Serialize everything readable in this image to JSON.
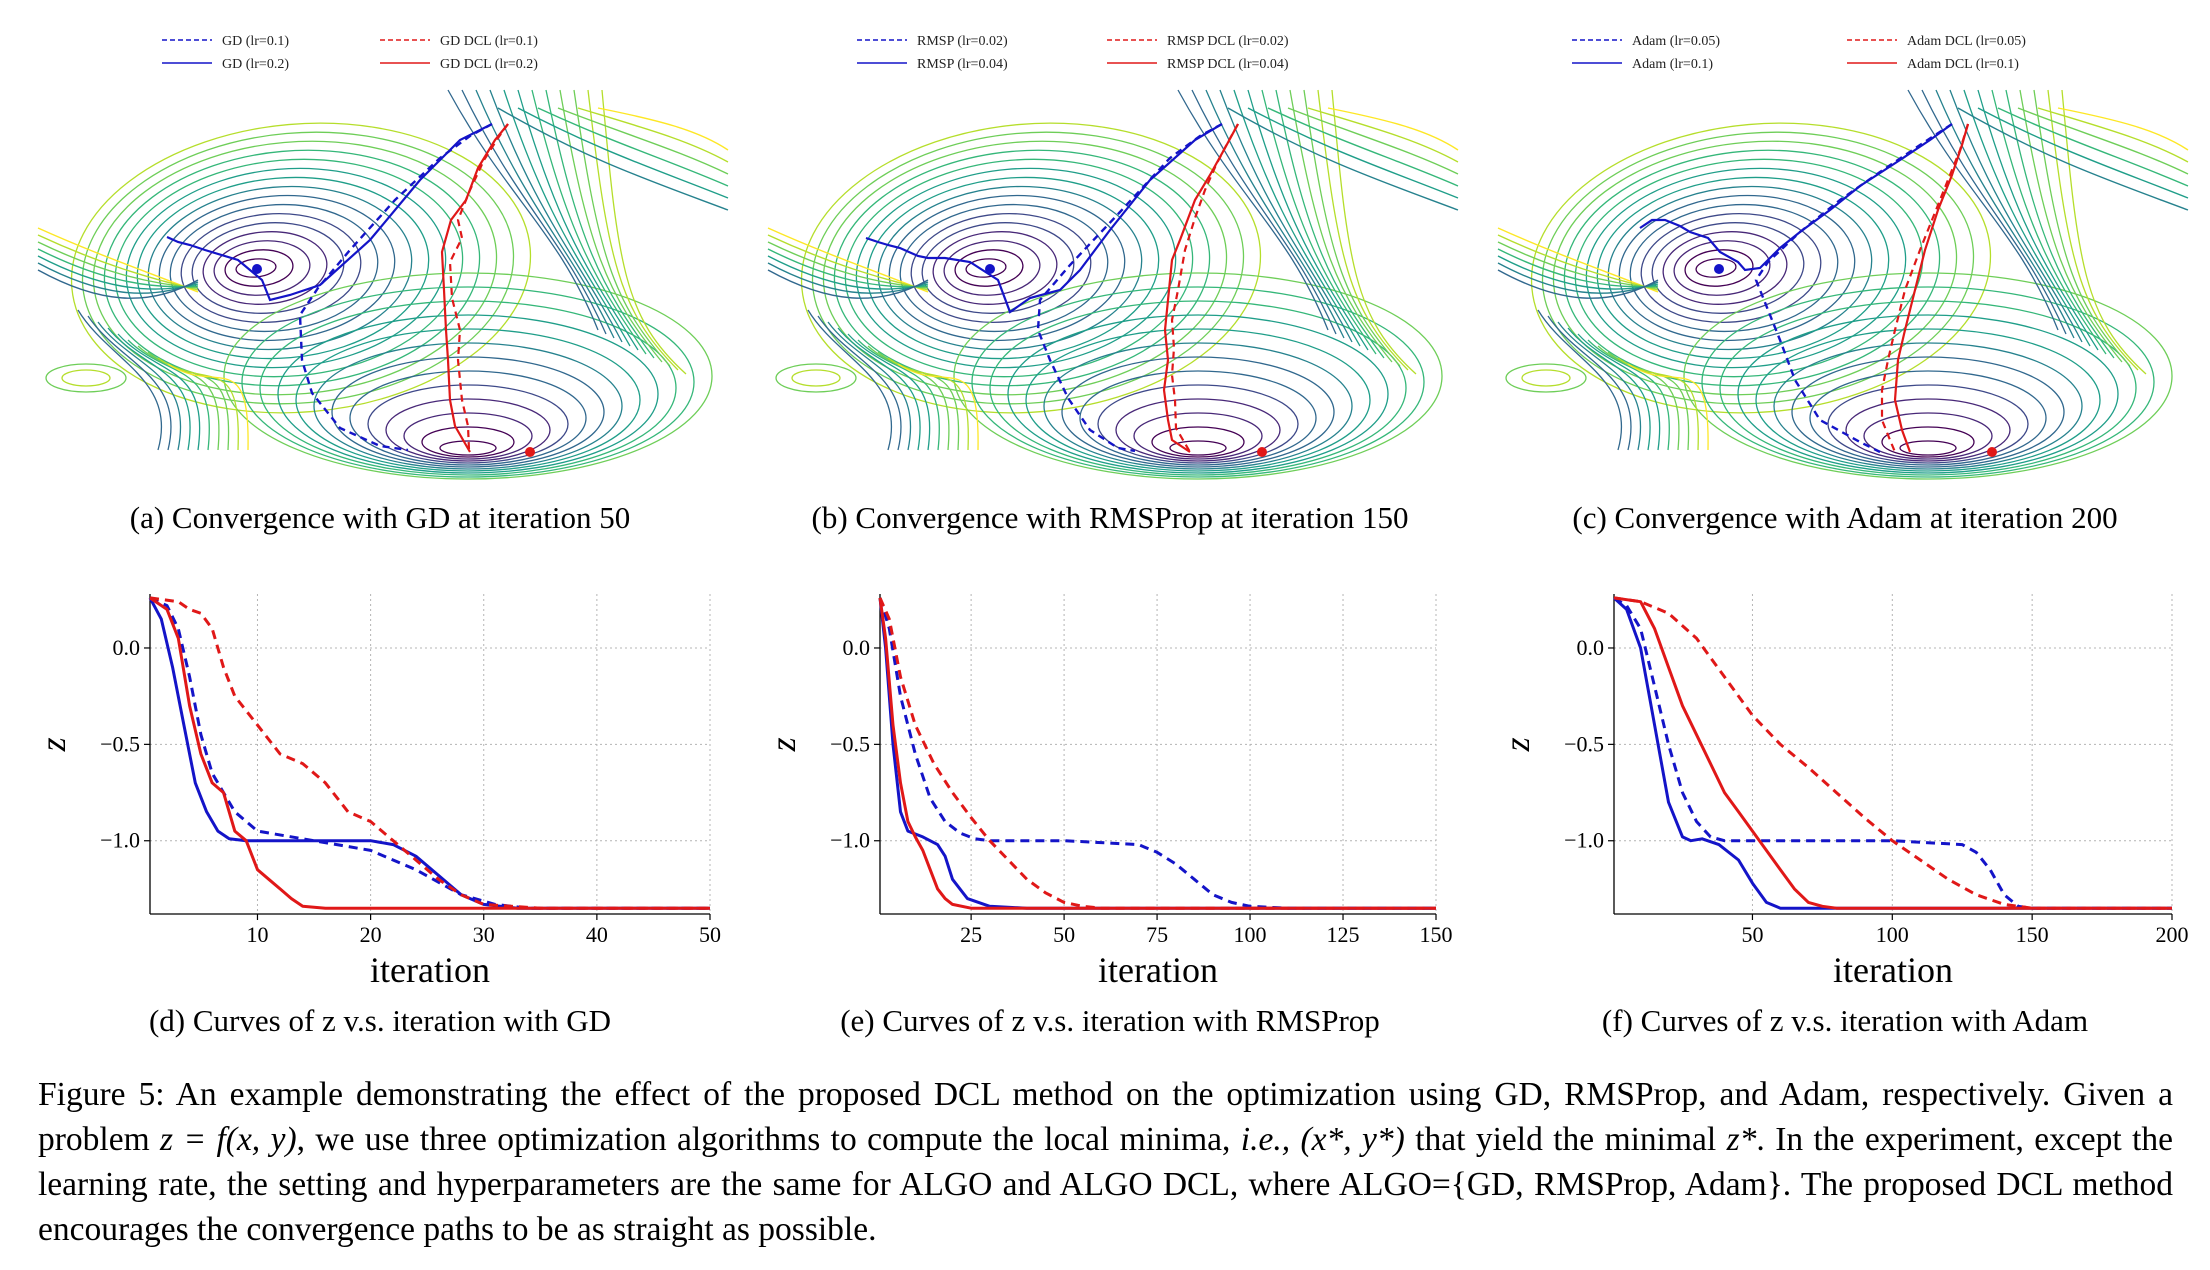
{
  "contour_panels": [
    {
      "legend": [
        "GD (lr=0.1)",
        "GD DCL (lr=0.1)",
        "GD (lr=0.2)",
        "GD DCL (lr=0.2)"
      ],
      "caption": "(a) Convergence with GD at iteration 50"
    },
    {
      "legend": [
        "RMSP (lr=0.02)",
        "RMSP DCL (lr=0.02)",
        "RMSP (lr=0.04)",
        "RMSP DCL (lr=0.04)"
      ],
      "caption": "(b) Convergence with RMSProp at iteration 150"
    },
    {
      "legend": [
        "Adam (lr=0.05)",
        "Adam DCL (lr=0.05)",
        "Adam (lr=0.1)",
        "Adam DCL (lr=0.1)"
      ],
      "caption": "(c) Convergence with Adam at iteration 200"
    }
  ],
  "curve_captions": [
    "(d) Curves of z v.s. iteration with GD",
    "(e) Curves of z v.s. iteration with RMSProp",
    "(f) Curves of z v.s. iteration with Adam"
  ],
  "colors": {
    "baseline": "#1414c8",
    "dcl": "#e01818",
    "grid": "#b4b4b4"
  },
  "chart_data": [
    {
      "type": "line",
      "xlabel": "iteration",
      "ylabel": "z",
      "xticks": [
        10,
        20,
        30,
        40,
        50
      ],
      "yticks": [
        0.0,
        -0.5,
        -1.0
      ],
      "ytick_labels": [
        "0.0",
        "−0.5",
        "−1.0"
      ],
      "xlim": [
        0.5,
        50
      ],
      "ylim": [
        -1.38,
        0.28
      ],
      "grid": true,
      "series": [
        {
          "color": "#1414c8",
          "style": "dashed",
          "x": [
            0.5,
            2,
            3,
            4,
            5,
            6,
            8,
            10,
            15,
            20,
            24,
            28,
            31,
            34,
            50
          ],
          "y": [
            0.26,
            0.22,
            0.1,
            -0.15,
            -0.45,
            -0.65,
            -0.85,
            -0.95,
            -1.0,
            -1.05,
            -1.15,
            -1.28,
            -1.33,
            -1.35,
            -1.35
          ]
        },
        {
          "color": "#1414c8",
          "style": "solid",
          "x": [
            0.5,
            1.5,
            2.5,
            3.5,
            4.5,
            5.5,
            6.5,
            7.5,
            9,
            12,
            18,
            20,
            22,
            24,
            26,
            28,
            30,
            33,
            50
          ],
          "y": [
            0.26,
            0.15,
            -0.1,
            -0.4,
            -0.7,
            -0.85,
            -0.95,
            -0.99,
            -1.0,
            -1.0,
            -1.0,
            -1.0,
            -1.02,
            -1.08,
            -1.18,
            -1.28,
            -1.33,
            -1.35,
            -1.35
          ]
        },
        {
          "color": "#e01818",
          "style": "dashed",
          "x": [
            0.5,
            3,
            4,
            5,
            6,
            7,
            8,
            10,
            12,
            14,
            16,
            18,
            20,
            22,
            24,
            26,
            28,
            30,
            35,
            50
          ],
          "y": [
            0.26,
            0.24,
            0.2,
            0.18,
            0.1,
            -0.1,
            -0.25,
            -0.4,
            -0.55,
            -0.6,
            -0.7,
            -0.85,
            -0.9,
            -1.0,
            -1.1,
            -1.2,
            -1.28,
            -1.33,
            -1.35,
            -1.35
          ]
        },
        {
          "color": "#e01818",
          "style": "solid",
          "x": [
            0.5,
            2,
            3,
            4,
            5,
            6,
            7,
            8,
            9,
            10,
            11,
            12,
            13,
            14,
            16,
            20,
            50
          ],
          "y": [
            0.26,
            0.2,
            0.05,
            -0.3,
            -0.55,
            -0.7,
            -0.75,
            -0.95,
            -1.0,
            -1.15,
            -1.2,
            -1.25,
            -1.3,
            -1.34,
            -1.35,
            -1.35,
            -1.35
          ]
        }
      ]
    },
    {
      "type": "line",
      "xlabel": "iteration",
      "ylabel": "z",
      "xticks": [
        25,
        50,
        75,
        100,
        125,
        150
      ],
      "yticks": [
        0.0,
        -0.5,
        -1.0
      ],
      "ytick_labels": [
        "0.0",
        "−0.5",
        "−1.0"
      ],
      "xlim": [
        0.5,
        150
      ],
      "ylim": [
        -1.38,
        0.28
      ],
      "grid": true,
      "series": [
        {
          "color": "#1414c8",
          "style": "dashed",
          "x": [
            0.5,
            3,
            6,
            10,
            14,
            18,
            22,
            26,
            30,
            50,
            70,
            75,
            80,
            85,
            90,
            95,
            100,
            110,
            150
          ],
          "y": [
            0.26,
            0.1,
            -0.25,
            -0.55,
            -0.78,
            -0.9,
            -0.96,
            -0.99,
            -1.0,
            -1.0,
            -1.02,
            -1.06,
            -1.12,
            -1.2,
            -1.28,
            -1.32,
            -1.34,
            -1.35,
            -1.35
          ]
        },
        {
          "color": "#1414c8",
          "style": "solid",
          "x": [
            0.5,
            2,
            4,
            6,
            8,
            12,
            16,
            18,
            20,
            24,
            30,
            40,
            150
          ],
          "y": [
            0.26,
            0.0,
            -0.5,
            -0.85,
            -0.95,
            -0.98,
            -1.02,
            -1.08,
            -1.2,
            -1.3,
            -1.34,
            -1.35,
            -1.35
          ]
        },
        {
          "color": "#e01818",
          "style": "dashed",
          "x": [
            0.5,
            3,
            6,
            10,
            15,
            20,
            25,
            30,
            35,
            40,
            45,
            50,
            55,
            60,
            150
          ],
          "y": [
            0.26,
            0.15,
            -0.15,
            -0.4,
            -0.6,
            -0.75,
            -0.88,
            -1.0,
            -1.1,
            -1.2,
            -1.27,
            -1.32,
            -1.34,
            -1.35,
            -1.35
          ]
        },
        {
          "color": "#e01818",
          "style": "solid",
          "x": [
            0.5,
            2,
            4,
            6,
            8,
            10,
            12,
            14,
            16,
            18,
            20,
            25,
            30,
            150
          ],
          "y": [
            0.26,
            0.05,
            -0.4,
            -0.7,
            -0.9,
            -0.98,
            -1.05,
            -1.15,
            -1.25,
            -1.3,
            -1.33,
            -1.35,
            -1.35,
            -1.35
          ]
        }
      ]
    },
    {
      "type": "line",
      "xlabel": "iteration",
      "ylabel": "z",
      "xticks": [
        50,
        100,
        150,
        200
      ],
      "yticks": [
        0.0,
        -0.5,
        -1.0
      ],
      "ytick_labels": [
        "0.0",
        "−0.5",
        "−1.0"
      ],
      "xlim": [
        0.5,
        200
      ],
      "ylim": [
        -1.38,
        0.28
      ],
      "grid": true,
      "series": [
        {
          "color": "#1414c8",
          "style": "dashed",
          "x": [
            0.5,
            5,
            10,
            15,
            20,
            25,
            30,
            35,
            40,
            60,
            100,
            125,
            130,
            135,
            140,
            145,
            150,
            200
          ],
          "y": [
            0.26,
            0.22,
            0.1,
            -0.2,
            -0.5,
            -0.75,
            -0.9,
            -0.98,
            -1.0,
            -1.0,
            -1.0,
            -1.02,
            -1.06,
            -1.15,
            -1.28,
            -1.34,
            -1.35,
            -1.35
          ]
        },
        {
          "color": "#1414c8",
          "style": "solid",
          "x": [
            0.5,
            5,
            10,
            15,
            20,
            25,
            28,
            32,
            38,
            45,
            50,
            55,
            60,
            70,
            200
          ],
          "y": [
            0.26,
            0.2,
            0.0,
            -0.4,
            -0.8,
            -0.98,
            -1.0,
            -0.99,
            -1.02,
            -1.1,
            -1.22,
            -1.32,
            -1.35,
            -1.35,
            -1.35
          ]
        },
        {
          "color": "#e01818",
          "style": "dashed",
          "x": [
            0.5,
            10,
            20,
            30,
            40,
            50,
            60,
            70,
            80,
            90,
            100,
            110,
            120,
            130,
            140,
            150,
            200
          ],
          "y": [
            0.26,
            0.24,
            0.18,
            0.05,
            -0.15,
            -0.35,
            -0.5,
            -0.62,
            -0.75,
            -0.88,
            -1.0,
            -1.1,
            -1.2,
            -1.28,
            -1.33,
            -1.35,
            -1.35
          ]
        },
        {
          "color": "#e01818",
          "style": "solid",
          "x": [
            0.5,
            10,
            15,
            20,
            25,
            30,
            35,
            40,
            45,
            50,
            55,
            60,
            65,
            70,
            75,
            80,
            200
          ],
          "y": [
            0.26,
            0.24,
            0.1,
            -0.1,
            -0.3,
            -0.45,
            -0.6,
            -0.75,
            -0.85,
            -0.95,
            -1.05,
            -1.15,
            -1.25,
            -1.32,
            -1.34,
            -1.35,
            -1.35
          ]
        }
      ]
    }
  ],
  "caption": {
    "label": "Figure 5:",
    "p1": " An example demonstrating the effect of the proposed DCL method on the optimization using GD, RMSProp, and Adam, respectively. Given a problem ",
    "math1": "z = f(x, y)",
    "p2": ", we use three optimization algorithms to compute the local minima, ",
    "ie": "i.e.,",
    "math2": "(x*, y*)",
    "p3": " that yield the minimal ",
    "math3": "z*",
    "p4": ". In the experiment, except the learning rate, the setting and hyperparameters are the same for ALGO and ALGO DCL, where ALGO={GD, RMSProp, Adam}. The proposed DCL method encourages the convergence paths to be as straight as possible."
  }
}
